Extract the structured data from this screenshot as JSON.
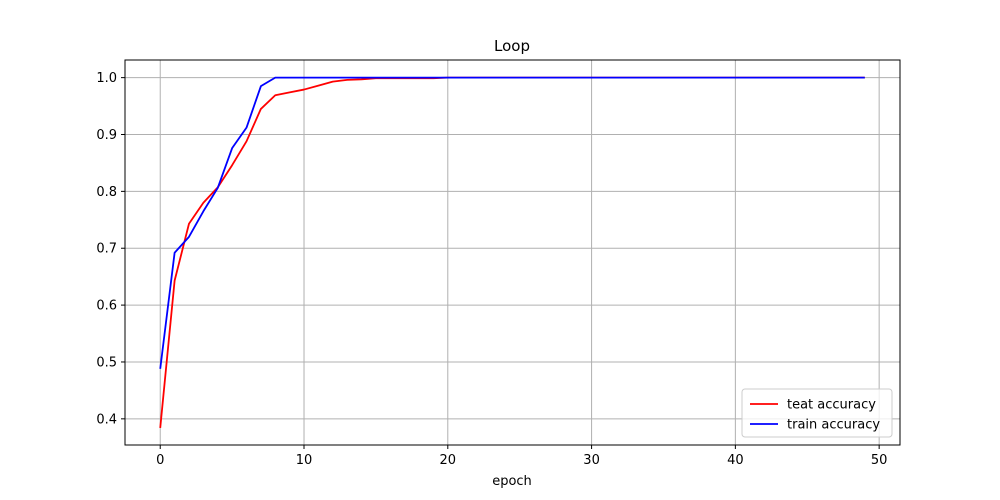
{
  "chart_data": {
    "type": "line",
    "title": "Loop",
    "xlabel": "epoch",
    "ylabel": "",
    "xlim": [
      -2.45,
      51.45
    ],
    "ylim": [
      0.354,
      1.031
    ],
    "xticks": [
      0,
      10,
      20,
      30,
      40,
      50
    ],
    "yticks": [
      0.4,
      0.5,
      0.6,
      0.7,
      0.8,
      0.9,
      1.0
    ],
    "xtick_labels": [
      "0",
      "10",
      "20",
      "30",
      "40",
      "50"
    ],
    "ytick_labels": [
      "0.4",
      "0.5",
      "0.6",
      "0.7",
      "0.8",
      "0.9",
      "1.0"
    ],
    "grid": true,
    "legend_position": "lower-right",
    "series": [
      {
        "name": "teat accuracy",
        "color": "#ff0000",
        "x": [
          0,
          1,
          2,
          3,
          4,
          5,
          6,
          7,
          8,
          9,
          10,
          11,
          12,
          13,
          14,
          15,
          16,
          17,
          18,
          19,
          20,
          21,
          22,
          23,
          24,
          25,
          26,
          27,
          28,
          29,
          30,
          31,
          32,
          33,
          34,
          35,
          36,
          37,
          38,
          39,
          40,
          41,
          42,
          43,
          44,
          45,
          46,
          47,
          48,
          49
        ],
        "values": [
          0.384,
          0.643,
          0.743,
          0.78,
          0.807,
          0.846,
          0.888,
          0.945,
          0.969,
          0.974,
          0.979,
          0.986,
          0.993,
          0.996,
          0.997,
          0.999,
          0.999,
          0.999,
          0.999,
          0.999,
          1.0,
          1.0,
          1.0,
          1.0,
          1.0,
          1.0,
          1.0,
          1.0,
          1.0,
          1.0,
          1.0,
          1.0,
          1.0,
          1.0,
          1.0,
          1.0,
          1.0,
          1.0,
          1.0,
          1.0,
          1.0,
          1.0,
          1.0,
          1.0,
          1.0,
          1.0,
          1.0,
          1.0,
          1.0,
          1.0
        ]
      },
      {
        "name": "train accuracy",
        "color": "#0000ff",
        "x": [
          0,
          1,
          2,
          3,
          4,
          5,
          6,
          7,
          8,
          9,
          10,
          11,
          12,
          13,
          14,
          15,
          16,
          17,
          18,
          19,
          20,
          21,
          22,
          23,
          24,
          25,
          26,
          27,
          28,
          29,
          30,
          31,
          32,
          33,
          34,
          35,
          36,
          37,
          38,
          39,
          40,
          41,
          42,
          43,
          44,
          45,
          46,
          47,
          48,
          49
        ],
        "values": [
          0.488,
          0.692,
          0.72,
          0.765,
          0.806,
          0.876,
          0.912,
          0.985,
          1.0,
          1.0,
          1.0,
          1.0,
          1.0,
          1.0,
          1.0,
          1.0,
          1.0,
          1.0,
          1.0,
          1.0,
          1.0,
          1.0,
          1.0,
          1.0,
          1.0,
          1.0,
          1.0,
          1.0,
          1.0,
          1.0,
          1.0,
          1.0,
          1.0,
          1.0,
          1.0,
          1.0,
          1.0,
          1.0,
          1.0,
          1.0,
          1.0,
          1.0,
          1.0,
          1.0,
          1.0,
          1.0,
          1.0,
          1.0,
          1.0,
          1.0
        ]
      }
    ]
  }
}
